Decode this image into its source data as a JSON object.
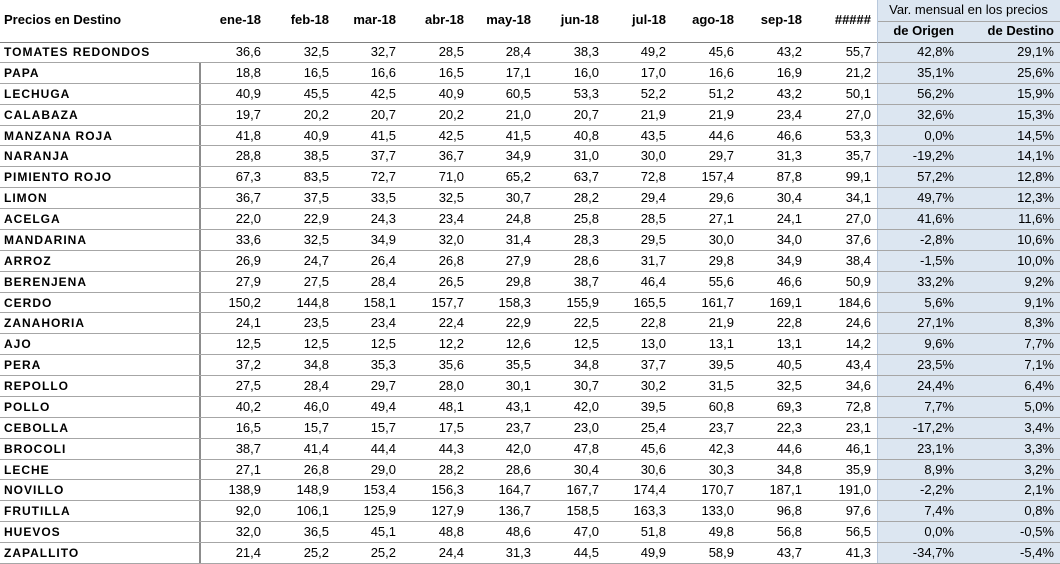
{
  "table": {
    "header": {
      "title": "Precios en Destino",
      "months": [
        "ene-18",
        "feb-18",
        "mar-18",
        "abr-18",
        "may-18",
        "jun-18",
        "jul-18",
        "ago-18",
        "sep-18",
        "#####"
      ],
      "group": "Var. mensual en los precios",
      "sub": [
        "de Origen",
        "de Destino"
      ]
    },
    "rows": [
      [
        "TOMATES REDONDOS",
        "36,6",
        "32,5",
        "32,7",
        "28,5",
        "28,4",
        "38,3",
        "49,2",
        "45,6",
        "43,2",
        "55,7",
        "42,8%",
        "29,1%"
      ],
      [
        "PAPA",
        "18,8",
        "16,5",
        "16,6",
        "16,5",
        "17,1",
        "16,0",
        "17,0",
        "16,6",
        "16,9",
        "21,2",
        "35,1%",
        "25,6%"
      ],
      [
        "LECHUGA",
        "40,9",
        "45,5",
        "42,5",
        "40,9",
        "60,5",
        "53,3",
        "52,2",
        "51,2",
        "43,2",
        "50,1",
        "56,2%",
        "15,9%"
      ],
      [
        "CALABAZA",
        "19,7",
        "20,2",
        "20,7",
        "20,2",
        "21,0",
        "20,7",
        "21,9",
        "21,9",
        "23,4",
        "27,0",
        "32,6%",
        "15,3%"
      ],
      [
        "MANZANA ROJA",
        "41,8",
        "40,9",
        "41,5",
        "42,5",
        "41,5",
        "40,8",
        "43,5",
        "44,6",
        "46,6",
        "53,3",
        "0,0%",
        "14,5%"
      ],
      [
        "NARANJA",
        "28,8",
        "38,5",
        "37,7",
        "36,7",
        "34,9",
        "31,0",
        "30,0",
        "29,7",
        "31,3",
        "35,7",
        "-19,2%",
        "14,1%"
      ],
      [
        "PIMIENTO ROJO",
        "67,3",
        "83,5",
        "72,7",
        "71,0",
        "65,2",
        "63,7",
        "72,8",
        "157,4",
        "87,8",
        "99,1",
        "57,2%",
        "12,8%"
      ],
      [
        "LIMON",
        "36,7",
        "37,5",
        "33,5",
        "32,5",
        "30,7",
        "28,2",
        "29,4",
        "29,6",
        "30,4",
        "34,1",
        "49,7%",
        "12,3%"
      ],
      [
        "ACELGA",
        "22,0",
        "22,9",
        "24,3",
        "23,4",
        "24,8",
        "25,8",
        "28,5",
        "27,1",
        "24,1",
        "27,0",
        "41,6%",
        "11,6%"
      ],
      [
        "MANDARINA",
        "33,6",
        "32,5",
        "34,9",
        "32,0",
        "31,4",
        "28,3",
        "29,5",
        "30,0",
        "34,0",
        "37,6",
        "-2,8%",
        "10,6%"
      ],
      [
        "ARROZ",
        "26,9",
        "24,7",
        "26,4",
        "26,8",
        "27,9",
        "28,6",
        "31,7",
        "29,8",
        "34,9",
        "38,4",
        "-1,5%",
        "10,0%"
      ],
      [
        "BERENJENA",
        "27,9",
        "27,5",
        "28,4",
        "26,5",
        "29,8",
        "38,7",
        "46,4",
        "55,6",
        "46,6",
        "50,9",
        "33,2%",
        "9,2%"
      ],
      [
        "CERDO",
        "150,2",
        "144,8",
        "158,1",
        "157,7",
        "158,3",
        "155,9",
        "165,5",
        "161,7",
        "169,1",
        "184,6",
        "5,6%",
        "9,1%"
      ],
      [
        "ZANAHORIA",
        "24,1",
        "23,5",
        "23,4",
        "22,4",
        "22,9",
        "22,5",
        "22,8",
        "21,9",
        "22,8",
        "24,6",
        "27,1%",
        "8,3%"
      ],
      [
        "AJO",
        "12,5",
        "12,5",
        "12,5",
        "12,2",
        "12,6",
        "12,5",
        "13,0",
        "13,1",
        "13,1",
        "14,2",
        "9,6%",
        "7,7%"
      ],
      [
        "PERA",
        "37,2",
        "34,8",
        "35,3",
        "35,6",
        "35,5",
        "34,8",
        "37,7",
        "39,5",
        "40,5",
        "43,4",
        "23,5%",
        "7,1%"
      ],
      [
        "REPOLLO",
        "27,5",
        "28,4",
        "29,7",
        "28,0",
        "30,1",
        "30,7",
        "30,2",
        "31,5",
        "32,5",
        "34,6",
        "24,4%",
        "6,4%"
      ],
      [
        "POLLO",
        "40,2",
        "46,0",
        "49,4",
        "48,1",
        "43,1",
        "42,0",
        "39,5",
        "60,8",
        "69,3",
        "72,8",
        "7,7%",
        "5,0%"
      ],
      [
        "CEBOLLA",
        "16,5",
        "15,7",
        "15,7",
        "17,5",
        "23,7",
        "23,0",
        "25,4",
        "23,7",
        "22,3",
        "23,1",
        "-17,2%",
        "3,4%"
      ],
      [
        "BROCOLI",
        "38,7",
        "41,4",
        "44,4",
        "44,3",
        "42,0",
        "47,8",
        "45,6",
        "42,3",
        "44,6",
        "46,1",
        "23,1%",
        "3,3%"
      ],
      [
        "LECHE",
        "27,1",
        "26,8",
        "29,0",
        "28,2",
        "28,6",
        "30,4",
        "30,6",
        "30,3",
        "34,8",
        "35,9",
        "8,9%",
        "3,2%"
      ],
      [
        "NOVILLO",
        "138,9",
        "148,9",
        "153,4",
        "156,3",
        "164,7",
        "167,7",
        "174,4",
        "170,7",
        "187,1",
        "191,0",
        "-2,2%",
        "2,1%"
      ],
      [
        "FRUTILLA",
        "92,0",
        "106,1",
        "125,9",
        "127,9",
        "136,7",
        "158,5",
        "163,3",
        "133,0",
        "96,8",
        "97,6",
        "7,4%",
        "0,8%"
      ],
      [
        "HUEVOS",
        "32,0",
        "36,5",
        "45,1",
        "48,8",
        "48,6",
        "47,0",
        "51,8",
        "49,8",
        "56,8",
        "56,5",
        "0,0%",
        "-0,5%"
      ],
      [
        "ZAPALLITO",
        "21,4",
        "25,2",
        "25,2",
        "24,4",
        "31,3",
        "44,5",
        "49,9",
        "58,9",
        "43,7",
        "41,3",
        "-34,7%",
        "-5,4%"
      ]
    ]
  }
}
